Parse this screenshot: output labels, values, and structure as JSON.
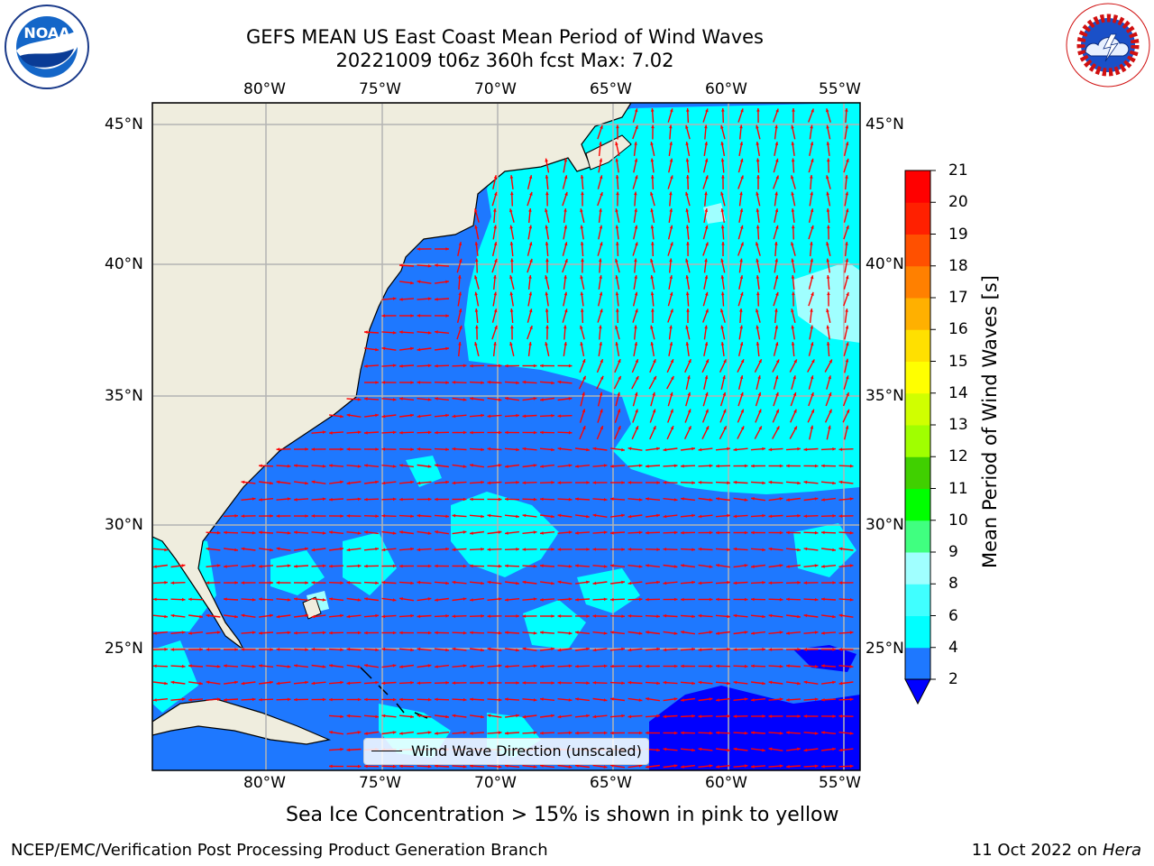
{
  "title": {
    "line1": "GEFS MEAN US East Coast Mean Period of Wind Waves",
    "line2": "20221009 t06z 360h fcst   Max: 7.02"
  },
  "map": {
    "lon_labels": [
      "80°W",
      "75°W",
      "70°W",
      "65°W",
      "60°W",
      "55°W"
    ],
    "lat_labels": [
      "45°N",
      "40°N",
      "35°N",
      "30°N",
      "25°N"
    ],
    "legend_label": "Wind Wave Direction (unscaled)",
    "ocean_color": "#1e78ff",
    "land_color": "#efedde",
    "arrow_color": "#ff0000"
  },
  "colorbar": {
    "label": "Mean Period of Wind Waves [s]",
    "ticks": [
      "2",
      "4",
      "6",
      "8",
      "9",
      "10",
      "11",
      "12",
      "13",
      "14",
      "15",
      "16",
      "17",
      "18",
      "19",
      "20",
      "21"
    ],
    "colors": [
      "#0000ff",
      "#1e78ff",
      "#00ffff",
      "#40ffff",
      "#a0ffff",
      "#40ff80",
      "#00ff00",
      "#40d000",
      "#a0ff00",
      "#d0ff00",
      "#ffff00",
      "#ffe000",
      "#ffb000",
      "#ff8000",
      "#ff5000",
      "#ff2000",
      "#ff0000"
    ]
  },
  "caption": "Sea Ice Concentration > 15% is shown in pink to yellow",
  "footer": {
    "left": "NCEP/EMC/Verification Post Processing Product Generation Branch",
    "right_prefix": "11 Oct 2022 on ",
    "right_host": "Hera"
  },
  "logos": {
    "noaa_text": "NOAA",
    "noaa_ring": "NATIONAL OCEANIC AND ATMOSPHERIC ADMINISTRATION · U.S. DEPARTMENT OF COMMERCE",
    "nws_ring": "NATIONAL WEATHER SERVICE"
  }
}
